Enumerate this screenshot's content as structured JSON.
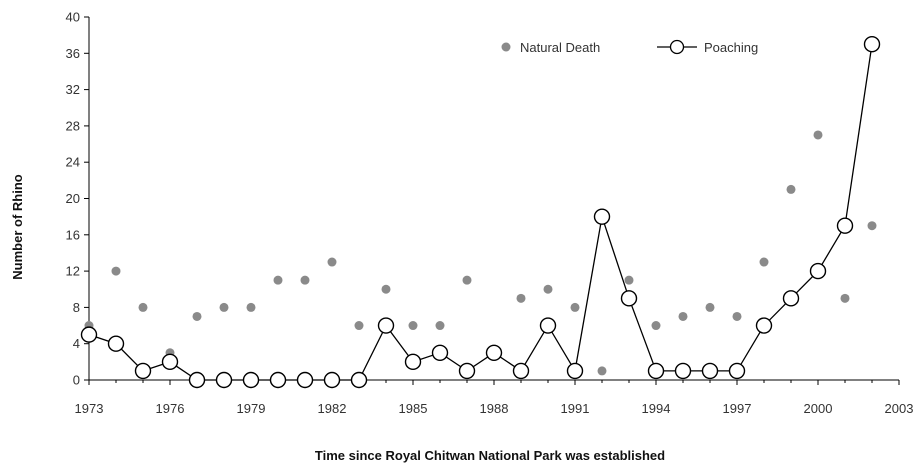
{
  "chart_data": {
    "type": "line",
    "xlabel": "Time since Royal Chitwan National Park was established",
    "ylabel": "Number of Rhino",
    "xlim": [
      1973,
      2003
    ],
    "ylim": [
      0,
      40
    ],
    "x_ticks": [
      1973,
      1976,
      1979,
      1982,
      1985,
      1988,
      1991,
      1994,
      1997,
      2000,
      2003
    ],
    "y_ticks": [
      0,
      4,
      8,
      12,
      16,
      20,
      24,
      28,
      32,
      36,
      40
    ],
    "grid": false,
    "legend_position": "top-right",
    "series": [
      {
        "name": "Natural Death",
        "style": "markers",
        "color": "#8a8a8a",
        "x": [
          1973,
          1974,
          1975,
          1976,
          1977,
          1978,
          1979,
          1980,
          1981,
          1982,
          1983,
          1984,
          1985,
          1986,
          1987,
          1988,
          1989,
          1990,
          1991,
          1992,
          1993,
          1994,
          1995,
          1996,
          1997,
          1998,
          1999,
          2000,
          2001,
          2002
        ],
        "values": [
          6,
          12,
          8,
          3,
          7,
          8,
          8,
          11,
          11,
          13,
          6,
          10,
          6,
          6,
          11,
          3,
          9,
          10,
          8,
          1,
          11,
          6,
          7,
          8,
          7,
          13,
          21,
          27,
          9,
          17
        ]
      },
      {
        "name": "Poaching",
        "style": "line-open-markers",
        "color": "#000000",
        "x": [
          1973,
          1974,
          1975,
          1976,
          1977,
          1978,
          1979,
          1980,
          1981,
          1982,
          1983,
          1984,
          1985,
          1986,
          1987,
          1988,
          1989,
          1990,
          1991,
          1992,
          1993,
          1994,
          1995,
          1996,
          1997,
          1998,
          1999,
          2000,
          2001,
          2002
        ],
        "values": [
          5,
          4,
          1,
          2,
          0,
          0,
          0,
          0,
          0,
          0,
          0,
          6,
          2,
          3,
          1,
          3,
          1,
          6,
          1,
          18,
          9,
          1,
          1,
          1,
          1,
          6,
          9,
          12,
          17,
          37
        ]
      }
    ]
  }
}
